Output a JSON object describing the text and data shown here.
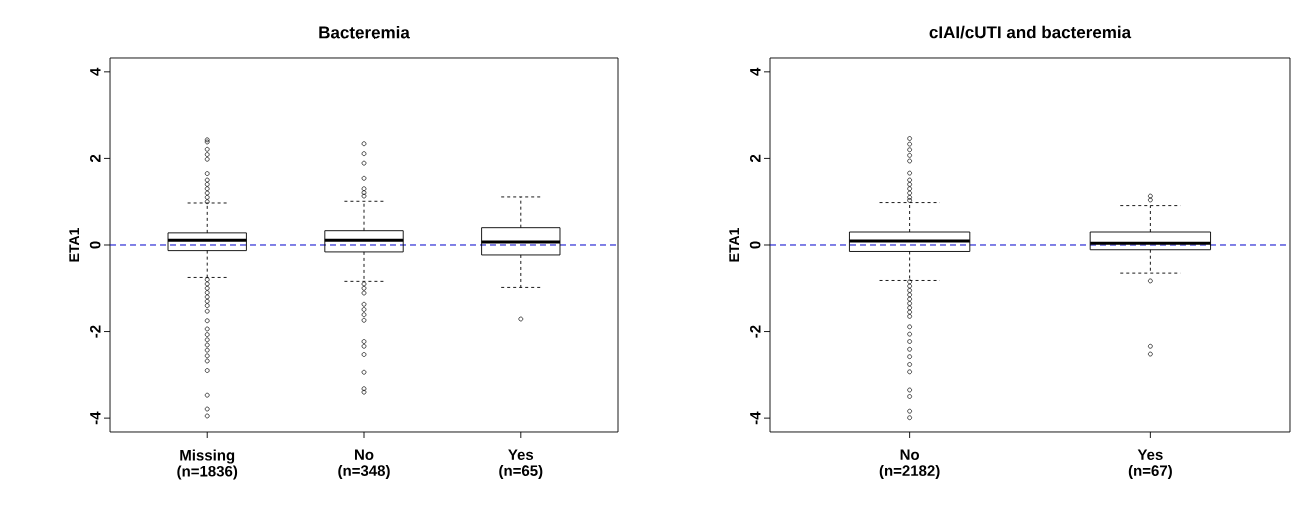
{
  "chart_data": [
    {
      "type": "box",
      "title": "Bacteremia",
      "ylabel": "ETA1",
      "categories": [
        "Missing (n=1836)",
        "No (n=348)",
        "Yes (n=65)"
      ],
      "boxes": [
        {
          "low": -0.75,
          "q1": -0.13,
          "median": 0.11,
          "q3": 0.28,
          "high": 0.97,
          "outliers": [
            2.43,
            2.38,
            2.21,
            2.09,
            1.98,
            1.65,
            1.5,
            1.4,
            1.3,
            1.2,
            1.1,
            1.0,
            -0.8,
            -0.9,
            -1.0,
            -1.1,
            -1.2,
            -1.3,
            -1.4,
            -1.53,
            -1.75,
            -1.94,
            -2.07,
            -2.19,
            -2.31,
            -2.43,
            -2.56,
            -2.68,
            -2.9,
            -3.47,
            -3.79,
            -3.95
          ]
        },
        {
          "low": -0.84,
          "q1": -0.16,
          "median": 0.11,
          "q3": 0.33,
          "high": 1.01,
          "outliers": [
            2.34,
            2.11,
            1.89,
            1.54,
            1.3,
            1.21,
            1.13,
            -0.9,
            -1.0,
            -1.11,
            -1.37,
            -1.49,
            -1.61,
            -1.74,
            -2.23,
            -2.34,
            -2.53,
            -2.94,
            -3.32,
            -3.4
          ]
        },
        {
          "low": -0.98,
          "q1": -0.23,
          "median": 0.07,
          "q3": 0.4,
          "high": 1.11,
          "outliers": [
            -1.71
          ]
        }
      ],
      "ylim": [
        -4.32,
        4.32
      ],
      "yticks": [
        -4,
        -2,
        0,
        2,
        4
      ],
      "ref_lines": [
        {
          "axis": "y",
          "value": 0,
          "color": "#0000cc",
          "line_style": "dashed"
        }
      ]
    },
    {
      "type": "box",
      "title": "cIAI/cUTI and bacteremia",
      "ylabel": "ETA1",
      "categories": [
        "No (n=2182)",
        "Yes (n=67)"
      ],
      "boxes": [
        {
          "low": -0.82,
          "q1": -0.15,
          "median": 0.09,
          "q3": 0.3,
          "high": 0.98,
          "outliers": [
            2.46,
            2.33,
            2.2,
            2.07,
            1.94,
            1.66,
            1.5,
            1.4,
            1.3,
            1.2,
            1.1,
            1.03,
            -0.85,
            -0.95,
            -1.05,
            -1.15,
            -1.25,
            -1.35,
            -1.45,
            -1.55,
            -1.65,
            -1.89,
            -2.06,
            -2.23,
            -2.41,
            -2.58,
            -2.76,
            -2.93,
            -3.35,
            -3.5,
            -3.84,
            -3.99
          ]
        },
        {
          "low": -0.65,
          "q1": -0.11,
          "median": 0.04,
          "q3": 0.3,
          "high": 0.91,
          "outliers": [
            1.13,
            1.04,
            -0.83,
            -2.34,
            -2.52
          ]
        }
      ],
      "ylim": [
        -4.32,
        4.32
      ],
      "yticks": [
        -4,
        -2,
        0,
        2,
        4
      ],
      "ref_lines": [
        {
          "axis": "y",
          "value": 0,
          "color": "#0000cc",
          "line_style": "dashed"
        }
      ]
    }
  ]
}
